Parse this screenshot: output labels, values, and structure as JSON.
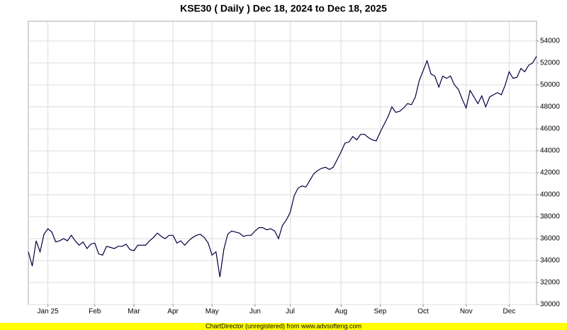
{
  "chart_data": {
    "type": "line",
    "title": "KSE30 ( Daily ) Dec 18, 2024 to Dec 18, 2025",
    "footer": "ChartDirector (unregistered) from www.advsofteng.com",
    "color": "#000040",
    "grid": true,
    "xlim": [
      0,
      130
    ],
    "xticks": [
      {
        "value": 5,
        "label": "Jan 25"
      },
      {
        "value": 17,
        "label": "Feb"
      },
      {
        "value": 27,
        "label": "Mar"
      },
      {
        "value": 37,
        "label": "Apr"
      },
      {
        "value": 47,
        "label": "May"
      },
      {
        "value": 58,
        "label": "Jun"
      },
      {
        "value": 67,
        "label": "Jul"
      },
      {
        "value": 80,
        "label": "Aug"
      },
      {
        "value": 90,
        "label": "Sep"
      },
      {
        "value": 101,
        "label": "Oct"
      },
      {
        "value": 112,
        "label": "Nov"
      },
      {
        "value": 123,
        "label": "Dec"
      }
    ],
    "ylim": [
      30000,
      55800
    ],
    "yticks": [
      30000,
      32000,
      34000,
      36000,
      38000,
      40000,
      42000,
      44000,
      46000,
      48000,
      50000,
      52000,
      54000
    ],
    "values": [
      34800,
      33500,
      35800,
      34800,
      36400,
      36900,
      36600,
      35700,
      35800,
      36000,
      35800,
      36300,
      35800,
      35400,
      35700,
      35100,
      35500,
      35600,
      34600,
      34500,
      35300,
      35200,
      35100,
      35300,
      35300,
      35500,
      35000,
      34900,
      35400,
      35400,
      35400,
      35800,
      36100,
      36500,
      36200,
      36000,
      36300,
      36300,
      35600,
      35800,
      35400,
      35800,
      36100,
      36300,
      36400,
      36100,
      35600,
      34500,
      34800,
      32500,
      35000,
      36400,
      36700,
      36600,
      36500,
      36200,
      36300,
      36300,
      36700,
      37000,
      37000,
      36800,
      36900,
      36700,
      36000,
      37200,
      37700,
      38400,
      39900,
      40600,
      40800,
      40700,
      41300,
      41900,
      42200,
      42400,
      42500,
      42300,
      42500,
      43200,
      43900,
      44700,
      44800,
      45300,
      45000,
      45500,
      45500,
      45200,
      45000,
      44900,
      45700,
      46400,
      47100,
      48000,
      47500,
      47600,
      47900,
      48300,
      48200,
      48900,
      50400,
      51300,
      52200,
      51000,
      50800,
      49800,
      50800,
      50600,
      50800,
      50000,
      49600,
      48700,
      47900,
      49500,
      48900,
      48300,
      49000,
      48000,
      48900,
      49100,
      49300,
      49100,
      50000,
      51200,
      50600,
      50700,
      51500,
      51200,
      51800,
      52000,
      52600
    ]
  }
}
